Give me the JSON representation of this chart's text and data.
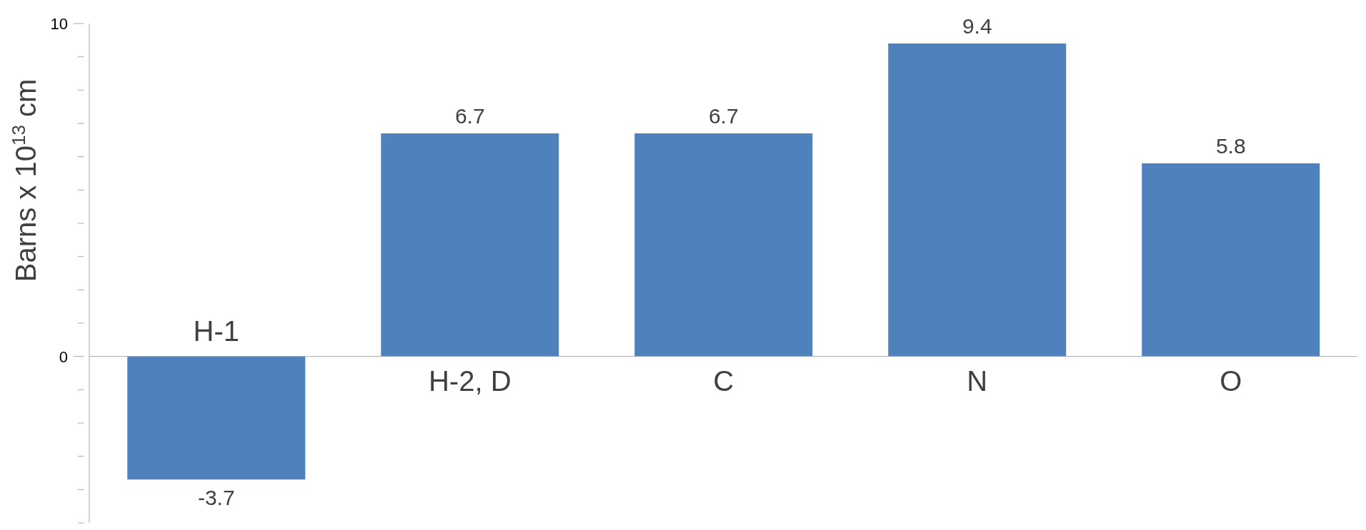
{
  "chart_data": {
    "type": "bar",
    "ylabel": "Barns x 10$^{13}$ cm",
    "categories": [
      "H-1",
      "H-2, D",
      "C",
      "N",
      "O"
    ],
    "values": [
      -3.7,
      6.7,
      6.7,
      9.4,
      5.8
    ],
    "color": "#4f81bd",
    "ylim": [
      -5,
      10
    ],
    "yticks": [
      {
        "value": -5,
        "label": null
      },
      {
        "value": -4,
        "label": null
      },
      {
        "value": -3,
        "label": null
      },
      {
        "value": -2,
        "label": null
      },
      {
        "value": -1,
        "label": null
      },
      0,
      {
        "value": 1,
        "label": null
      },
      {
        "value": 2,
        "label": null
      },
      {
        "value": 3,
        "label": null
      },
      {
        "value": 4,
        "label": null
      },
      {
        "value": 5,
        "label": null
      },
      {
        "value": 6,
        "label": null
      },
      {
        "value": 7,
        "label": null
      },
      {
        "value": 8,
        "label": null
      },
      {
        "value": 9,
        "label": null
      },
      10
    ],
    "data_labels": true,
    "grid": false,
    "legend": false
  }
}
